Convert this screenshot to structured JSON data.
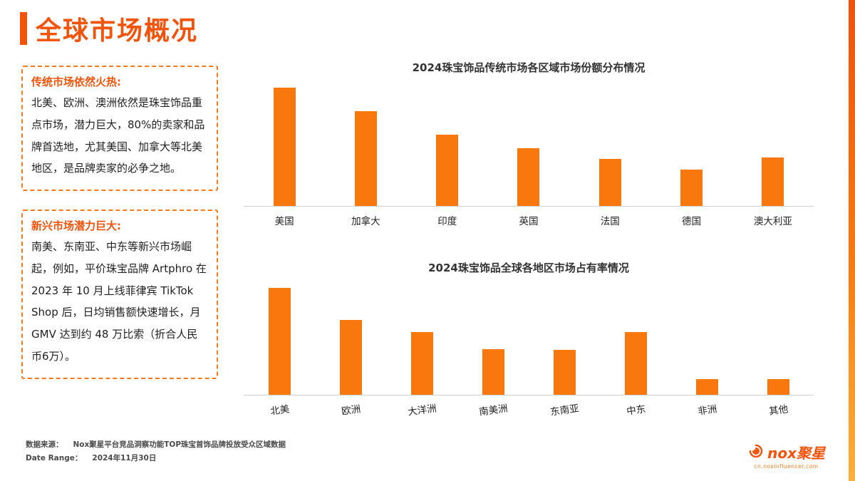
{
  "page": {
    "title": "全球市场概况"
  },
  "accent_colors": {
    "title": "#F2540C",
    "bar": "#F9780D",
    "box_border": "#F97A1A"
  },
  "sidebar": {
    "notes": [
      {
        "heading": "传统市场依然火热:",
        "body": "北美、欧洲、澳洲依然是珠宝饰品重点市场，潜力巨大，80%的卖家和品牌首选地，尤其美国、加拿大等北美地区，是品牌卖家的必争之地。"
      },
      {
        "heading": "新兴市场潜力巨大:",
        "body": "南美、东南亚、中东等新兴市场崛起，例如，平价珠宝品牌 Artphro 在 2023 年 10 月上线菲律宾 TikTok Shop 后，日均销售额快速增长，月 GMV 达到约 48 万比索（折合人民币6万）。"
      }
    ]
  },
  "chart_data": [
    {
      "type": "bar",
      "title": "2024珠宝饰品传统市场各区域市场份额分布情况",
      "categories": [
        "美国",
        "加拿大",
        "印度",
        "英国",
        "法国",
        "德国",
        "澳大利亚"
      ],
      "values": [
        100,
        80,
        60,
        49,
        40,
        31,
        41
      ],
      "ylim": [
        0,
        100
      ],
      "xlabel": "",
      "ylabel": "",
      "grid": false,
      "legend": "none",
      "bar_color": "#F9780D",
      "value_units": "relative height (no axis scale shown in source)"
    },
    {
      "type": "bar",
      "title": "2024珠宝饰品全球各地区市场占有率情况",
      "categories": [
        "北美",
        "欧洲",
        "大洋洲",
        "南美洲",
        "东南亚",
        "中东",
        "非洲",
        "其他"
      ],
      "values": [
        100,
        70,
        59,
        43,
        42,
        59,
        15,
        15
      ],
      "ylim": [
        0,
        100
      ],
      "xlabel": "",
      "ylabel": "",
      "grid": false,
      "legend": "none",
      "bar_color": "#F9780D",
      "value_units": "relative height (no axis scale shown in source)"
    }
  ],
  "footer": {
    "source_label": "数据来源：",
    "source_text": "Nox聚星平台竞品洞察功能TOP珠宝首饰品牌投放受众区域数据",
    "date_label": "Date Range：",
    "date_text": "2024年11月30日"
  },
  "logo": {
    "text": "nox聚星",
    "subtext": "cn.noxinfluencer.com"
  }
}
